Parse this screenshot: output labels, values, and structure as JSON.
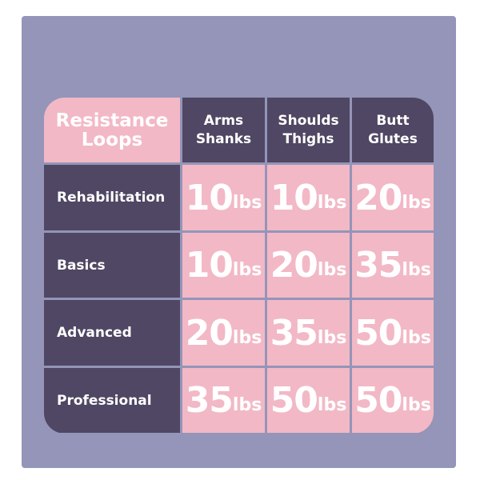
{
  "table": {
    "corner_label": [
      "Resistance",
      "Loops"
    ],
    "columns": [
      [
        "Arms",
        "Shanks"
      ],
      [
        "Shoulds",
        "Thighs"
      ],
      [
        "Butt",
        "Glutes"
      ]
    ],
    "unit": "lbs",
    "rows": [
      {
        "label": "Rehabilitation",
        "values": [
          "10",
          "10",
          "20"
        ]
      },
      {
        "label": "Basics",
        "values": [
          "10",
          "20",
          "35"
        ]
      },
      {
        "label": "Advanced",
        "values": [
          "20",
          "35",
          "50"
        ]
      },
      {
        "label": "Professional",
        "values": [
          "35",
          "50",
          "50"
        ]
      }
    ]
  },
  "colors": {
    "background": "#9495b8",
    "dark": "#4f4763",
    "pink": "#f2b8c6"
  }
}
